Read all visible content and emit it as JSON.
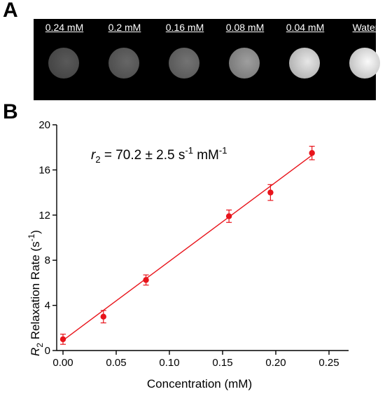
{
  "panels": {
    "a_label": "A",
    "b_label": "B"
  },
  "mri_samples": [
    {
      "label": "0.24 mM",
      "brightness": 0.35
    },
    {
      "label": "0.2 mM",
      "brightness": 0.4
    },
    {
      "label": "0.16 mM",
      "brightness": 0.45
    },
    {
      "label": "0.08 mM",
      "brightness": 0.62
    },
    {
      "label": "0.04 mM",
      "brightness": 0.9
    },
    {
      "label": "Water",
      "brightness": 0.98
    }
  ],
  "chart_data": {
    "type": "scatter",
    "xlabel": "Concentration (mM)",
    "ylabel_italic": "R",
    "ylabel_sub": "2",
    "ylabel_rest": " Relaxation Rate (s",
    "ylabel_sup": "-1",
    "ylabel_close": ")",
    "xlim": [
      0,
      0.25
    ],
    "ylim": [
      0,
      20
    ],
    "xticks": [
      "0.00",
      "0.05",
      "0.10",
      "0.15",
      "0.20",
      "0.25"
    ],
    "yticks": [
      "0",
      "4",
      "8",
      "12",
      "16",
      "20"
    ],
    "annotation": {
      "r": "r",
      "sub": "2",
      "eq": " = 70.2 ± 2.5 s",
      "sup1": "-1",
      "mid": " mM",
      "sup2": "-1"
    },
    "series": [
      {
        "color": "#e8141b",
        "points": [
          {
            "x": 0.0,
            "y": 1.0,
            "err": 0.45
          },
          {
            "x": 0.038,
            "y": 3.0,
            "err": 0.55
          },
          {
            "x": 0.078,
            "y": 6.25,
            "err": 0.45
          },
          {
            "x": 0.156,
            "y": 11.9,
            "err": 0.55
          },
          {
            "x": 0.195,
            "y": 14.0,
            "err": 0.7
          },
          {
            "x": 0.234,
            "y": 17.5,
            "err": 0.6
          }
        ],
        "fit": {
          "x0": 0.0,
          "y0": 0.9,
          "x1": 0.234,
          "y1": 17.3
        }
      }
    ]
  }
}
